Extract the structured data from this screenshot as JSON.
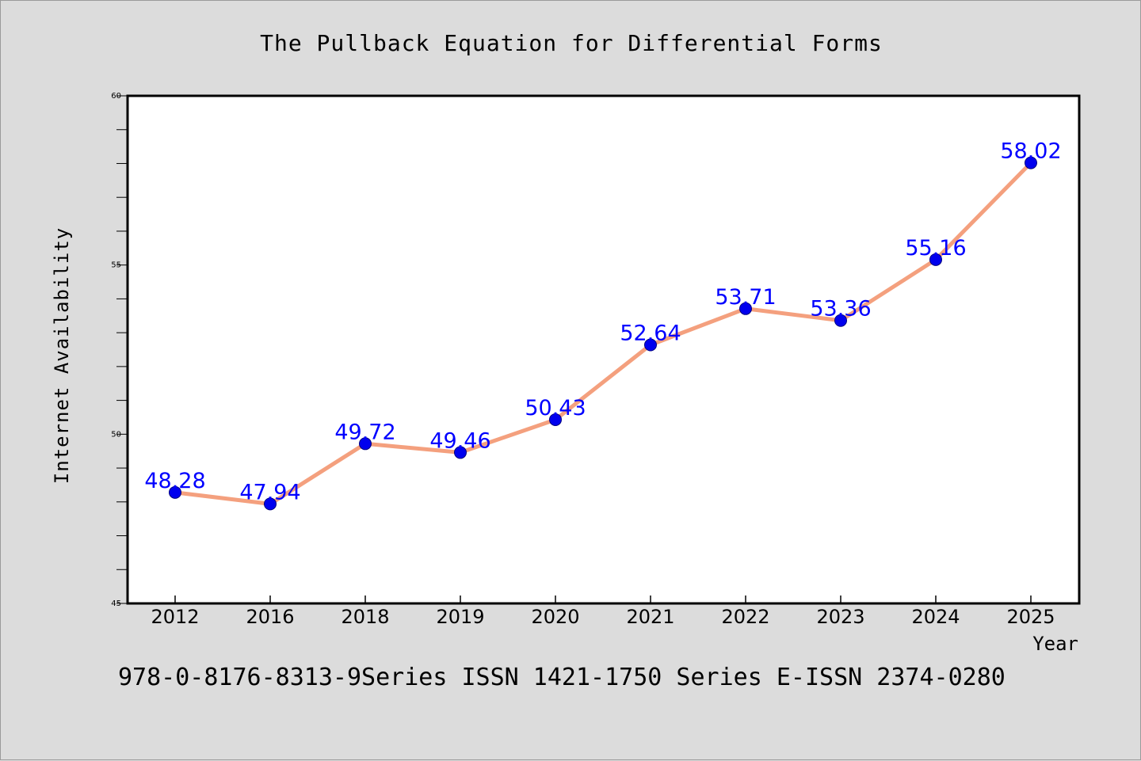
{
  "chart_data": {
    "type": "line",
    "title": "The Pullback Equation for Differential Forms",
    "xlabel": "Year",
    "ylabel": "Internet Availability",
    "categories": [
      "2012",
      "2016",
      "2018",
      "2019",
      "2020",
      "2021",
      "2022",
      "2023",
      "2024",
      "2025"
    ],
    "series": [
      {
        "values": [
          48.28,
          47.94,
          49.72,
          49.46,
          50.43,
          52.64,
          53.71,
          53.36,
          55.16,
          58.02
        ],
        "labels": [
          "48.28",
          "47.94",
          "49.72",
          "49.46",
          "50.43",
          "52.64",
          "53.71",
          "53.36",
          "55.16",
          "58.02"
        ]
      }
    ],
    "ylim": [
      45,
      60
    ],
    "yticks": [
      "45",
      "50",
      "55",
      "60"
    ],
    "minor_ticks_per_major": 5,
    "grid": false,
    "legend": "none",
    "colors": {
      "line": "#f4a07e",
      "marker": "#0000ee",
      "marker_edge": "#000080",
      "data_label": "#0000ff",
      "background": "#dcdcdc",
      "plot_background": "#ffffff"
    }
  },
  "footer": {
    "text": "978-0-8176-8313-9Series ISSN 1421-1750 Series E-ISSN 2374-0280"
  }
}
